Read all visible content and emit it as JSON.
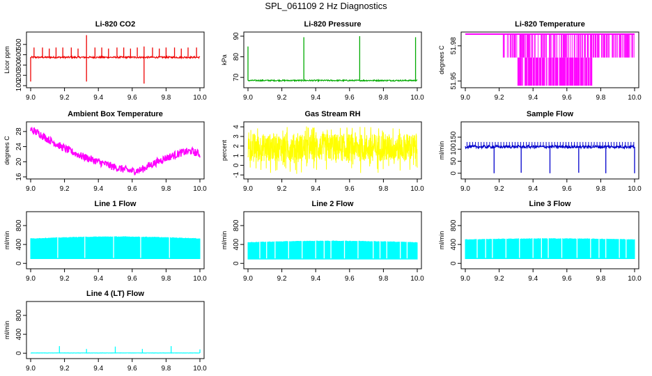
{
  "main_title": "SPL_061109  2 Hz Diagnostics",
  "chart_data": [
    {
      "type": "line",
      "title": "Li-820 CO2",
      "xlabel": "",
      "ylabel": "Licor ppm",
      "xlim": [
        9.0,
        10.0
      ],
      "ylim": [
        100,
        600
      ],
      "xticks": [
        9.0,
        9.2,
        9.4,
        9.6,
        9.8,
        10.0
      ],
      "xtick_labels": [
        "9.0",
        "9.2",
        "9.4",
        "9.6",
        "9.8",
        "10.0"
      ],
      "yticks": [
        100,
        200,
        300,
        400,
        500
      ],
      "ytick_labels": [
        "100",
        "200",
        "300",
        "400",
        "500"
      ],
      "color": "#ee0000",
      "pattern": "baseline_spikes",
      "series": [
        {
          "baseline": 375,
          "noise": 8,
          "spikes": [
            [
              9.02,
              470
            ],
            [
              9.07,
              470
            ],
            [
              9.11,
              460
            ],
            [
              9.15,
              470
            ],
            [
              9.19,
              470
            ],
            [
              9.24,
              470
            ],
            [
              9.28,
              460
            ],
            [
              9.33,
              590
            ],
            [
              9.33,
              140
            ],
            [
              9.38,
              470
            ],
            [
              9.42,
              470
            ],
            [
              9.46,
              460
            ],
            [
              9.51,
              470
            ],
            [
              9.55,
              470
            ],
            [
              9.59,
              460
            ],
            [
              9.63,
              470
            ],
            [
              9.67,
              480
            ],
            [
              9.67,
              120
            ],
            [
              9.72,
              470
            ],
            [
              9.76,
              460
            ],
            [
              9.8,
              470
            ],
            [
              9.85,
              470
            ],
            [
              9.89,
              460
            ],
            [
              9.93,
              470
            ],
            [
              9.98,
              470
            ],
            [
              9.0,
              140
            ]
          ]
        }
      ]
    },
    {
      "type": "line",
      "title": "Li-820 Pressure",
      "xlabel": "",
      "ylabel": "kPa",
      "xlim": [
        9.0,
        10.0
      ],
      "ylim": [
        66,
        91
      ],
      "xticks": [
        9.0,
        9.2,
        9.4,
        9.6,
        9.8,
        10.0
      ],
      "xtick_labels": [
        "9.0",
        "9.2",
        "9.4",
        "9.6",
        "9.8",
        "10.0"
      ],
      "yticks": [
        70,
        80,
        90
      ],
      "ytick_labels": [
        "70",
        "80",
        "90"
      ],
      "color": "#00aa00",
      "pattern": "baseline_spikes",
      "series": [
        {
          "baseline": 68.5,
          "noise": 0.3,
          "spikes": [
            [
              9.0,
              85
            ],
            [
              9.33,
              89.5
            ],
            [
              9.66,
              90
            ],
            [
              9.99,
              89.5
            ]
          ]
        }
      ]
    },
    {
      "type": "line",
      "title": "Li-820 Temperature",
      "xlabel": "",
      "ylabel": "degrees C",
      "xlim": [
        9.0,
        10.0
      ],
      "ylim": [
        51.946,
        51.99
      ],
      "xticks": [
        9.0,
        9.2,
        9.4,
        9.6,
        9.8,
        10.0
      ],
      "xtick_labels": [
        "9.0",
        "9.2",
        "9.4",
        "9.6",
        "9.8",
        "10.0"
      ],
      "yticks": [
        51.95,
        51.98
      ],
      "ytick_labels": [
        "51.95",
        "51.98"
      ],
      "color": "#ff00ff",
      "pattern": "step_levels",
      "series": [
        {
          "top": 51.99,
          "mid": 51.97,
          "low": 51.946,
          "mid_band": [
            9.22,
            10.0
          ],
          "low_band": [
            9.31,
            9.75
          ]
        }
      ]
    },
    {
      "type": "line",
      "title": "Ambient Box Temperature",
      "xlabel": "",
      "ylabel": "degrees C",
      "xlim": [
        9.0,
        10.0
      ],
      "ylim": [
        16,
        30
      ],
      "xticks": [
        9.0,
        9.2,
        9.4,
        9.6,
        9.8,
        10.0
      ],
      "xtick_labels": [
        "9.0",
        "9.2",
        "9.4",
        "9.6",
        "9.8",
        "10.0"
      ],
      "yticks": [
        16,
        20,
        24,
        28
      ],
      "ytick_labels": [
        "16",
        "20",
        "24",
        "28"
      ],
      "color": "#ff00ff",
      "pattern": "curve_noise",
      "series": [
        {
          "noise": 1.0,
          "x": [
            9.0,
            9.05,
            9.1,
            9.2,
            9.3,
            9.4,
            9.5,
            9.6,
            9.65,
            9.7,
            9.8,
            9.9,
            9.95,
            10.0
          ],
          "y": [
            28.5,
            27.5,
            26.0,
            23.5,
            21.5,
            20.0,
            18.5,
            17.5,
            17.8,
            19.0,
            21.0,
            22.5,
            22.8,
            22.0
          ]
        }
      ]
    },
    {
      "type": "line",
      "title": "Gas Stream RH",
      "xlabel": "",
      "ylabel": "percent",
      "xlim": [
        9.0,
        10.0
      ],
      "ylim": [
        -1.2,
        4.3
      ],
      "xticks": [
        9.0,
        9.2,
        9.4,
        9.6,
        9.8,
        10.0
      ],
      "xtick_labels": [
        "9.0",
        "9.2",
        "9.4",
        "9.6",
        "9.8",
        "10.0"
      ],
      "yticks": [
        -1,
        0,
        1,
        2,
        3,
        4
      ],
      "ytick_labels": [
        "-1",
        "0",
        "1",
        "2",
        "3",
        "4"
      ],
      "color": "#ffff00",
      "pattern": "band_noise",
      "series": [
        {
          "center": 1.9,
          "lo": -0.9,
          "hi": 4.1,
          "core_lo": 0.4,
          "core_hi": 3.3
        }
      ]
    },
    {
      "type": "line",
      "title": "Sample Flow",
      "xlabel": "",
      "ylabel": "ml/min",
      "xlim": [
        9.0,
        10.0
      ],
      "ylim": [
        -15,
        205
      ],
      "xticks": [
        9.0,
        9.2,
        9.4,
        9.6,
        9.8,
        10.0
      ],
      "xtick_labels": [
        "9.0",
        "9.2",
        "9.4",
        "9.6",
        "9.8",
        "10.0"
      ],
      "yticks": [
        0,
        50,
        100,
        150
      ],
      "ytick_labels": [
        "0",
        "50",
        "100",
        "150"
      ],
      "color": "#0000cc",
      "pattern": "baseline_spikes",
      "series": [
        {
          "baseline": 110,
          "noise": 6,
          "spikes": [
            [
              9.17,
              0
            ],
            [
              9.33,
              2
            ],
            [
              9.5,
              0
            ],
            [
              9.67,
              2
            ],
            [
              9.83,
              0
            ],
            [
              10.0,
              0
            ]
          ],
          "ticks_up": 130,
          "tick_step": 0.0167
        }
      ]
    },
    {
      "type": "line",
      "title": "Line 1 Flow",
      "xlabel": "",
      "ylabel": "ml/min",
      "xlim": [
        9.0,
        10.0
      ],
      "ylim": [
        -70,
        1050
      ],
      "xticks": [
        9.0,
        9.2,
        9.4,
        9.6,
        9.8,
        10.0
      ],
      "xtick_labels": [
        "9.0",
        "9.2",
        "9.4",
        "9.6",
        "9.8",
        "10.0"
      ],
      "yticks": [
        0,
        400,
        800
      ],
      "ytick_labels": [
        "0",
        "400",
        "800"
      ],
      "color": "#00ffff",
      "pattern": "flow_band",
      "series": [
        {
          "lo": 100,
          "hi_start": 520,
          "hi_end": 560,
          "gaps": [
            9.16,
            9.32,
            9.49,
            9.65,
            9.82
          ]
        }
      ]
    },
    {
      "type": "line",
      "title": "Line 2 Flow",
      "xlabel": "",
      "ylabel": "ml/min",
      "xlim": [
        9.0,
        10.0
      ],
      "ylim": [
        -70,
        1050
      ],
      "xticks": [
        9.0,
        9.2,
        9.4,
        9.6,
        9.8,
        10.0
      ],
      "xtick_labels": [
        "9.0",
        "9.2",
        "9.4",
        "9.6",
        "9.8",
        "10.0"
      ],
      "yticks": [
        0,
        400,
        800
      ],
      "ytick_labels": [
        "0",
        "400",
        "800"
      ],
      "color": "#00ffff",
      "pattern": "flow_band",
      "series": [
        {
          "lo": 90,
          "hi_start": 440,
          "hi_end": 470,
          "gaps": [
            9.07,
            9.11,
            9.16,
            9.24,
            9.32,
            9.4,
            9.45,
            9.49,
            9.57,
            9.65,
            9.74,
            9.78,
            9.82,
            9.9,
            9.94
          ]
        }
      ]
    },
    {
      "type": "line",
      "title": "Line 3 Flow",
      "xlabel": "",
      "ylabel": "ml/min",
      "xlim": [
        9.0,
        10.0
      ],
      "ylim": [
        -70,
        1050
      ],
      "xticks": [
        9.0,
        9.2,
        9.4,
        9.6,
        9.8,
        10.0
      ],
      "xtick_labels": [
        "9.0",
        "9.2",
        "9.4",
        "9.6",
        "9.8",
        "10.0"
      ],
      "yticks": [
        0,
        400,
        800
      ],
      "ytick_labels": [
        "0",
        "400",
        "800"
      ],
      "color": "#00ffff",
      "pattern": "flow_band",
      "series": [
        {
          "lo": 100,
          "hi_start": 500,
          "hi_end": 520,
          "gaps": [
            9.07,
            9.12,
            9.16,
            9.24,
            9.32,
            9.4,
            9.45,
            9.49,
            9.57,
            9.66,
            9.74,
            9.79,
            9.83,
            9.91,
            9.95
          ]
        }
      ]
    },
    {
      "type": "line",
      "title": "Line 4 (LT) Flow",
      "xlabel": "",
      "ylabel": "ml/min",
      "xlim": [
        9.0,
        10.0
      ],
      "ylim": [
        -70,
        1050
      ],
      "xticks": [
        9.0,
        9.2,
        9.4,
        9.6,
        9.8,
        10.0
      ],
      "xtick_labels": [
        "9.0",
        "9.2",
        "9.4",
        "9.6",
        "9.8",
        "10.0"
      ],
      "yticks": [
        0,
        400,
        800
      ],
      "ytick_labels": [
        "0",
        "400",
        "800"
      ],
      "color": "#00ffff",
      "pattern": "baseline_spikes",
      "series": [
        {
          "baseline": 5,
          "noise": 2,
          "spikes": [
            [
              9.17,
              150
            ],
            [
              9.33,
              90
            ],
            [
              9.5,
              140
            ],
            [
              9.66,
              90
            ],
            [
              9.83,
              150
            ],
            [
              10.0,
              80
            ]
          ]
        }
      ]
    }
  ]
}
